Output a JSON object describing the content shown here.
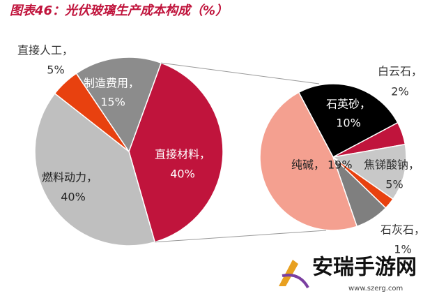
{
  "chart_data": {
    "type": "pie_of_pie",
    "title": "图表46：光伏玻璃生产成本构成（%）",
    "pies": [
      {
        "categories": [
          "直接材料，",
          "燃料动力，",
          "直接人工，",
          "制造费用，"
        ],
        "values": [
          40,
          40,
          5,
          15
        ],
        "value_labels": [
          "40%",
          "40%",
          "5%",
          "15%"
        ],
        "colors": [
          "#c0143c",
          "#bfbfbf",
          "#e8410f",
          "#8c8c8c"
        ]
      },
      {
        "categories": [
          "石英砂，",
          "白云石，",
          "焦锑酸钠，",
          "石灰石，",
          null,
          "纯碱，"
        ],
        "values": [
          10,
          2,
          5,
          1,
          3,
          19
        ],
        "value_labels": [
          "10%",
          "2%",
          "5%",
          "1%",
          null,
          "19%"
        ],
        "colors": [
          "#000000",
          "#c0143c",
          "#c8c8c8",
          "#e8410f",
          "#7f7f7f",
          "#f4a090"
        ]
      }
    ]
  },
  "watermark": {
    "name": "安瑞手游网",
    "url": "www.szerg.com"
  }
}
